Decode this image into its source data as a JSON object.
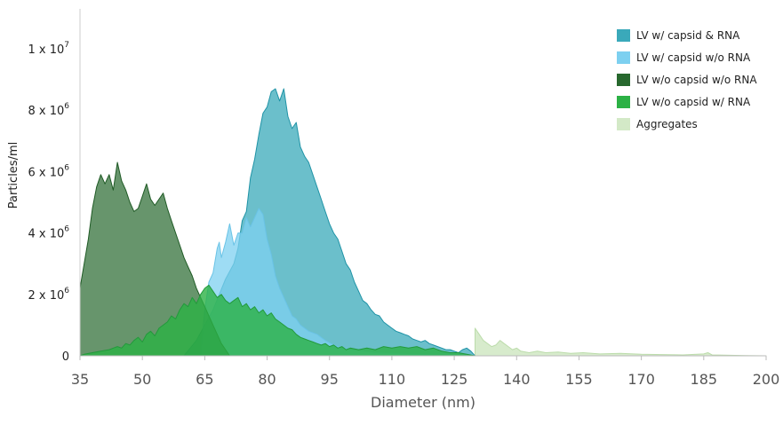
{
  "chart_data": {
    "type": "area",
    "xlabel": "Diameter (nm)",
    "ylabel": "Particles/ml",
    "xlim": [
      35,
      200
    ],
    "ylim": [
      0,
      11300000
    ],
    "x_ticks": [
      "35",
      "50",
      "65",
      "80",
      "95",
      "110",
      "125",
      "140",
      "155",
      "170",
      "185",
      "200"
    ],
    "y_ticks": [
      {
        "value": 0,
        "mantissa": "0",
        "exp": ""
      },
      {
        "value": 2000000,
        "mantissa": "2 x 10",
        "exp": "6"
      },
      {
        "value": 4000000,
        "mantissa": "4 x 10",
        "exp": "6"
      },
      {
        "value": 6000000,
        "mantissa": "6 x 10",
        "exp": "6"
      },
      {
        "value": 8000000,
        "mantissa": "8 x 10",
        "exp": "6"
      },
      {
        "value": 10000000,
        "mantissa": "1 x 10",
        "exp": "7"
      }
    ],
    "legend_position": "top-right",
    "series": [
      {
        "name": "Aggregates",
        "color": "#d3e9c7",
        "stroke": "#bcdcab",
        "opacity": 0.9,
        "points": [
          [
            125,
            0
          ],
          [
            130,
            0.1
          ],
          [
            130,
            900000
          ],
          [
            131,
            700000
          ],
          [
            132,
            500000
          ],
          [
            133,
            400000
          ],
          [
            134,
            300000
          ],
          [
            135,
            350000
          ],
          [
            136,
            500000
          ],
          [
            137,
            400000
          ],
          [
            138,
            300000
          ],
          [
            139,
            200000
          ],
          [
            140,
            250000
          ],
          [
            141,
            150000
          ],
          [
            143,
            100000
          ],
          [
            145,
            150000
          ],
          [
            147,
            100000
          ],
          [
            150,
            120000
          ],
          [
            153,
            80000
          ],
          [
            156,
            100000
          ],
          [
            160,
            60000
          ],
          [
            165,
            80000
          ],
          [
            170,
            50000
          ],
          [
            175,
            40000
          ],
          [
            180,
            30000
          ],
          [
            185,
            60000
          ],
          [
            186,
            100000
          ],
          [
            187,
            30000
          ],
          [
            190,
            20000
          ],
          [
            195,
            10000
          ],
          [
            200,
            0
          ]
        ]
      },
      {
        "name": "LV w/ capsid & RNA",
        "color": "#3aa9ba",
        "stroke": "#1f93a6",
        "opacity": 0.75,
        "points": [
          [
            60,
            0
          ],
          [
            63,
            500000
          ],
          [
            67,
            1500000
          ],
          [
            70,
            2500000
          ],
          [
            72,
            3000000
          ],
          [
            73,
            3500000
          ],
          [
            74,
            4400000
          ],
          [
            75,
            4700000
          ],
          [
            76,
            5800000
          ],
          [
            77,
            6400000
          ],
          [
            78,
            7200000
          ],
          [
            79,
            7900000
          ],
          [
            80,
            8100000
          ],
          [
            81,
            8600000
          ],
          [
            82,
            8700000
          ],
          [
            83,
            8300000
          ],
          [
            84,
            8700000
          ],
          [
            85,
            7800000
          ],
          [
            86,
            7400000
          ],
          [
            87,
            7600000
          ],
          [
            88,
            6800000
          ],
          [
            89,
            6500000
          ],
          [
            90,
            6300000
          ],
          [
            91,
            5900000
          ],
          [
            92,
            5500000
          ],
          [
            93,
            5100000
          ],
          [
            94,
            4700000
          ],
          [
            95,
            4300000
          ],
          [
            96,
            4000000
          ],
          [
            97,
            3800000
          ],
          [
            98,
            3400000
          ],
          [
            99,
            3000000
          ],
          [
            100,
            2800000
          ],
          [
            101,
            2400000
          ],
          [
            102,
            2100000
          ],
          [
            103,
            1800000
          ],
          [
            104,
            1700000
          ],
          [
            105,
            1500000
          ],
          [
            106,
            1350000
          ],
          [
            107,
            1300000
          ],
          [
            108,
            1100000
          ],
          [
            109,
            1000000
          ],
          [
            110,
            900000
          ],
          [
            111,
            800000
          ],
          [
            112,
            750000
          ],
          [
            113,
            700000
          ],
          [
            114,
            650000
          ],
          [
            115,
            550000
          ],
          [
            116,
            500000
          ],
          [
            117,
            450000
          ],
          [
            118,
            500000
          ],
          [
            119,
            400000
          ],
          [
            120,
            350000
          ],
          [
            121,
            300000
          ],
          [
            122,
            250000
          ],
          [
            123,
            200000
          ],
          [
            124,
            200000
          ],
          [
            125,
            150000
          ],
          [
            126,
            100000
          ],
          [
            127,
            200000
          ],
          [
            128,
            250000
          ],
          [
            129,
            150000
          ],
          [
            130,
            0
          ]
        ]
      },
      {
        "name": "LV w/ capsid w/o RNA",
        "color": "#7dd0f0",
        "stroke": "#6ac3e6",
        "opacity": 0.75,
        "points": [
          [
            64,
            0
          ],
          [
            65,
            1500000
          ],
          [
            66,
            2400000
          ],
          [
            67,
            2700000
          ],
          [
            68,
            3500000
          ],
          [
            68.5,
            3700000
          ],
          [
            69,
            3200000
          ],
          [
            70,
            3700000
          ],
          [
            71,
            4300000
          ],
          [
            72,
            3600000
          ],
          [
            73,
            4000000
          ],
          [
            74,
            4000000
          ],
          [
            75,
            4500000
          ],
          [
            76,
            4200000
          ],
          [
            77,
            4500000
          ],
          [
            78,
            4800000
          ],
          [
            79,
            4600000
          ],
          [
            80,
            3800000
          ],
          [
            81,
            3300000
          ],
          [
            82,
            2600000
          ],
          [
            83,
            2200000
          ],
          [
            84,
            1900000
          ],
          [
            85,
            1600000
          ],
          [
            86,
            1300000
          ],
          [
            87,
            1200000
          ],
          [
            88,
            1000000
          ],
          [
            89,
            900000
          ],
          [
            90,
            800000
          ],
          [
            92,
            700000
          ],
          [
            94,
            500000
          ],
          [
            96,
            350000
          ],
          [
            98,
            250000
          ],
          [
            100,
            200000
          ],
          [
            103,
            150000
          ],
          [
            106,
            100000
          ],
          [
            110,
            80000
          ],
          [
            115,
            50000
          ],
          [
            120,
            30000
          ],
          [
            125,
            0
          ]
        ]
      },
      {
        "name": "LV w/o capsid w/o RNA",
        "color": "#27682e",
        "stroke": "#1f5a25",
        "opacity": 0.7,
        "points": [
          [
            35,
            0
          ],
          [
            35,
            2200000
          ],
          [
            36,
            3000000
          ],
          [
            37,
            3800000
          ],
          [
            38,
            4800000
          ],
          [
            39,
            5500000
          ],
          [
            40,
            5900000
          ],
          [
            41,
            5600000
          ],
          [
            42,
            5900000
          ],
          [
            43,
            5400000
          ],
          [
            44,
            6300000
          ],
          [
            45,
            5700000
          ],
          [
            46,
            5400000
          ],
          [
            47,
            5000000
          ],
          [
            48,
            4700000
          ],
          [
            49,
            4800000
          ],
          [
            50,
            5200000
          ],
          [
            51,
            5600000
          ],
          [
            52,
            5100000
          ],
          [
            53,
            4900000
          ],
          [
            54,
            5100000
          ],
          [
            55,
            5300000
          ],
          [
            56,
            4800000
          ],
          [
            57,
            4400000
          ],
          [
            58,
            4000000
          ],
          [
            59,
            3600000
          ],
          [
            60,
            3200000
          ],
          [
            61,
            2900000
          ],
          [
            62,
            2600000
          ],
          [
            63,
            2200000
          ],
          [
            64,
            1900000
          ],
          [
            65,
            1600000
          ],
          [
            66,
            1300000
          ],
          [
            67,
            1000000
          ],
          [
            68,
            700000
          ],
          [
            69,
            400000
          ],
          [
            70,
            200000
          ],
          [
            71,
            0
          ]
        ]
      },
      {
        "name": "LV w/o capsid w/ RNA",
        "color": "#2cb145",
        "stroke": "#229a3b",
        "opacity": 0.8,
        "points": [
          [
            35,
            0
          ],
          [
            36,
            50000
          ],
          [
            38,
            100000
          ],
          [
            40,
            150000
          ],
          [
            42,
            200000
          ],
          [
            44,
            300000
          ],
          [
            45,
            250000
          ],
          [
            46,
            400000
          ],
          [
            47,
            350000
          ],
          [
            48,
            500000
          ],
          [
            49,
            600000
          ],
          [
            50,
            450000
          ],
          [
            51,
            700000
          ],
          [
            52,
            800000
          ],
          [
            53,
            650000
          ],
          [
            54,
            900000
          ],
          [
            55,
            1000000
          ],
          [
            56,
            1100000
          ],
          [
            57,
            1300000
          ],
          [
            58,
            1200000
          ],
          [
            59,
            1500000
          ],
          [
            60,
            1700000
          ],
          [
            61,
            1600000
          ],
          [
            62,
            1900000
          ],
          [
            63,
            1700000
          ],
          [
            64,
            2000000
          ],
          [
            65,
            2200000
          ],
          [
            66,
            2300000
          ],
          [
            67,
            2100000
          ],
          [
            68,
            1900000
          ],
          [
            69,
            2000000
          ],
          [
            70,
            1800000
          ],
          [
            71,
            1700000
          ],
          [
            72,
            1800000
          ],
          [
            73,
            1900000
          ],
          [
            74,
            1600000
          ],
          [
            75,
            1700000
          ],
          [
            76,
            1500000
          ],
          [
            77,
            1600000
          ],
          [
            78,
            1400000
          ],
          [
            79,
            1500000
          ],
          [
            80,
            1300000
          ],
          [
            81,
            1400000
          ],
          [
            82,
            1200000
          ],
          [
            83,
            1100000
          ],
          [
            84,
            1000000
          ],
          [
            85,
            900000
          ],
          [
            86,
            850000
          ],
          [
            87,
            700000
          ],
          [
            88,
            600000
          ],
          [
            89,
            550000
          ],
          [
            90,
            500000
          ],
          [
            91,
            450000
          ],
          [
            92,
            400000
          ],
          [
            93,
            350000
          ],
          [
            94,
            400000
          ],
          [
            95,
            300000
          ],
          [
            96,
            350000
          ],
          [
            97,
            250000
          ],
          [
            98,
            300000
          ],
          [
            99,
            200000
          ],
          [
            100,
            250000
          ],
          [
            102,
            200000
          ],
          [
            104,
            250000
          ],
          [
            106,
            200000
          ],
          [
            108,
            300000
          ],
          [
            110,
            250000
          ],
          [
            112,
            300000
          ],
          [
            114,
            250000
          ],
          [
            116,
            300000
          ],
          [
            118,
            200000
          ],
          [
            120,
            250000
          ],
          [
            122,
            150000
          ],
          [
            124,
            100000
          ],
          [
            126,
            100000
          ],
          [
            128,
            50000
          ],
          [
            130,
            0
          ]
        ]
      }
    ],
    "legend_order": [
      1,
      2,
      3,
      4,
      0
    ]
  }
}
